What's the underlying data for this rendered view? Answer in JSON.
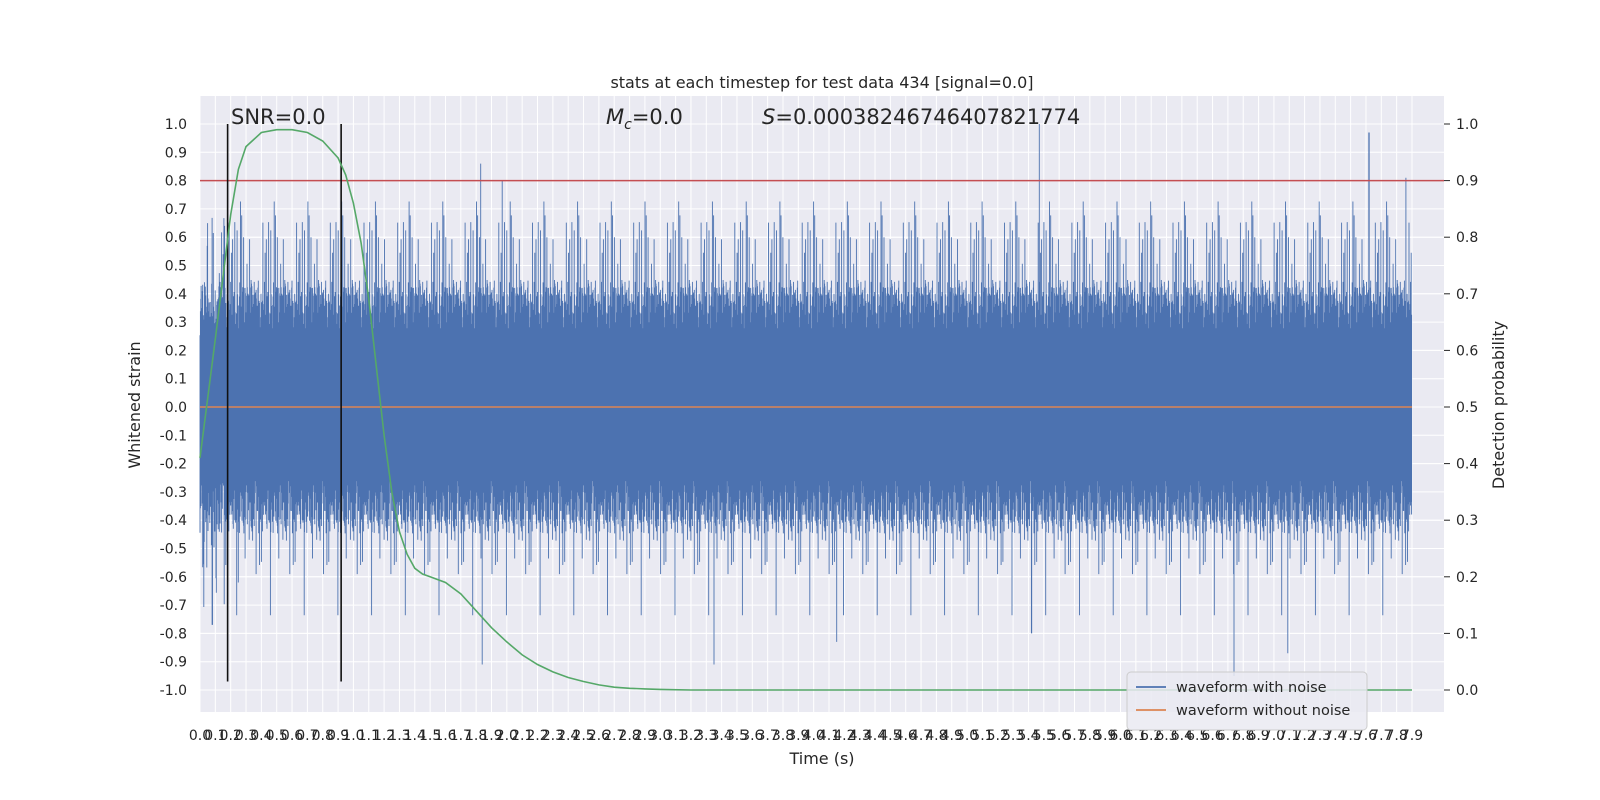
{
  "chart_data": {
    "type": "line",
    "title": "stats at each timestep for test data 434 [signal=0.0]",
    "xlabel": "Time (s)",
    "ylabel": "Whitened strain",
    "y2label": "Detection probability",
    "xlim": [
      0.0,
      7.9
    ],
    "ylim": [
      -1.0,
      1.0
    ],
    "y2lim": [
      0.0,
      1.0
    ],
    "grid": true,
    "legend_position": "bottom-right",
    "x_ticks": [
      "0.0",
      "0.1",
      "0.2",
      "0.3",
      "0.4",
      "0.5",
      "0.6",
      "0.7",
      "0.8",
      "0.9",
      "1.0",
      "1.1",
      "1.2",
      "1.3",
      "1.4",
      "1.5",
      "1.6",
      "1.7",
      "1.8",
      "1.9",
      "2.0",
      "2.1",
      "2.2",
      "2.3",
      "2.4",
      "2.5",
      "2.6",
      "2.7",
      "2.8",
      "2.9",
      "3.0",
      "3.1",
      "3.2",
      "3.3",
      "3.4",
      "3.5",
      "3.6",
      "3.7",
      "3.8",
      "3.9",
      "4.0",
      "4.1",
      "4.2",
      "4.3",
      "4.4",
      "4.5",
      "4.6",
      "4.7",
      "4.8",
      "4.9",
      "5.0",
      "5.1",
      "5.2",
      "5.3",
      "5.4",
      "5.5",
      "5.6",
      "5.7",
      "5.8",
      "5.9",
      "6.0",
      "6.1",
      "6.2",
      "6.3",
      "6.4",
      "6.5",
      "6.6",
      "6.7",
      "6.8",
      "6.9",
      "7.0",
      "7.1",
      "7.2",
      "7.3",
      "7.4",
      "7.5",
      "7.6",
      "7.7",
      "7.8",
      "7.9"
    ],
    "y_ticks": [
      "1.0",
      "0.9",
      "0.8",
      "0.7",
      "0.6",
      "0.5",
      "0.4",
      "0.3",
      "0.2",
      "0.1",
      "0.0",
      "-0.1",
      "-0.2",
      "-0.3",
      "-0.4",
      "-0.5",
      "-0.6",
      "-0.7",
      "-0.8",
      "-0.9",
      "-1.0"
    ],
    "y2_ticks": [
      "1.0",
      "0.9",
      "0.8",
      "0.7",
      "0.6",
      "0.5",
      "0.4",
      "0.3",
      "0.2",
      "0.1",
      "0.0"
    ],
    "annotations": {
      "snr": "SNR=0.0",
      "mc_symbol": "M",
      "mc_subscript": "c",
      "mc_value": "=0.0",
      "s_symbol": "S",
      "s_value": "=0.00038246746407821774"
    },
    "threshold": {
      "value": 0.9,
      "axis": "right",
      "color": "#c44e52"
    },
    "vertical_markers": [
      0.18,
      0.92
    ],
    "series": [
      {
        "name": "waveform with noise",
        "color": "#4c72b0",
        "axis": "left",
        "description_values": {
          "peaks_x": [
            0.05,
            0.16,
            1.83,
            1.97,
            5.47,
            7.62,
            7.86
          ],
          "peaks_y": [
            0.65,
            0.64,
            0.86,
            0.8,
            1.0,
            0.97,
            0.81
          ],
          "troughs_x": [
            0.08,
            0.25,
            1.84,
            3.35,
            4.15,
            5.42,
            6.74,
            7.09
          ],
          "troughs_y": [
            -0.77,
            -0.62,
            -0.91,
            -0.91,
            -0.83,
            -0.8,
            -0.95,
            -0.87
          ]
        }
      },
      {
        "name": "waveform without noise",
        "color": "#dd8452",
        "axis": "left",
        "x": [
          0.0,
          7.9
        ],
        "y": [
          0.0,
          0.0
        ]
      },
      {
        "name": "",
        "color": "#55a868",
        "axis": "right",
        "x": [
          0.0,
          0.1,
          0.2,
          0.25,
          0.3,
          0.4,
          0.5,
          0.6,
          0.7,
          0.8,
          0.9,
          0.95,
          1.0,
          1.05,
          1.1,
          1.15,
          1.2,
          1.25,
          1.3,
          1.35,
          1.4,
          1.45,
          1.5,
          1.6,
          1.7,
          1.8,
          1.9,
          2.0,
          2.1,
          2.2,
          2.3,
          2.4,
          2.5,
          2.6,
          2.7,
          2.8,
          2.9,
          3.0,
          3.2,
          3.5,
          4.0,
          5.0,
          6.0,
          7.0,
          7.9
        ],
        "y": [
          0.41,
          0.62,
          0.84,
          0.92,
          0.96,
          0.985,
          0.99,
          0.99,
          0.985,
          0.97,
          0.94,
          0.91,
          0.86,
          0.79,
          0.69,
          0.57,
          0.45,
          0.35,
          0.28,
          0.24,
          0.215,
          0.205,
          0.2,
          0.19,
          0.17,
          0.14,
          0.11,
          0.085,
          0.062,
          0.045,
          0.032,
          0.022,
          0.015,
          0.009,
          0.005,
          0.003,
          0.002,
          0.001,
          0.0,
          0.0,
          0.0,
          0.0,
          0.0,
          0.0,
          0.0
        ]
      }
    ]
  }
}
